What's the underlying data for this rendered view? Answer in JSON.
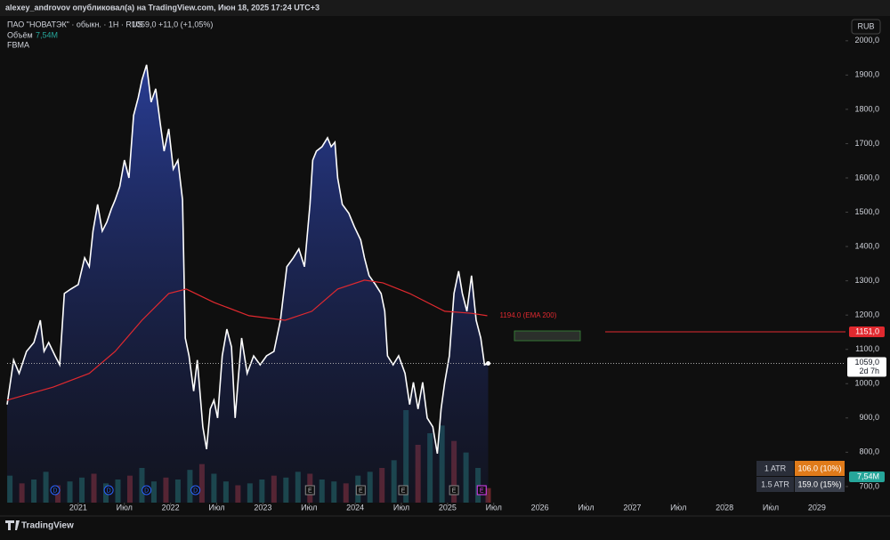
{
  "header": {
    "published": "alexey_androvov опубликовал(а) на TradingView.com, Июн 18, 2025 17:24 UTC+3",
    "symbol": "ПАО \"НОВАТЭК\" · обыкн. · 1Н · RUS",
    "last": "1059,0",
    "change": "+11,0 (+1,05%)",
    "volume_name": "Объём",
    "volume_value": "7,54M",
    "indicator": "FBMA",
    "currency": "RUB",
    "brand": "TradingView"
  },
  "chart_data": {
    "type": "line",
    "xlim": [
      2020.23,
      2029.31
    ],
    "ylim": [
      653,
      2067
    ],
    "xticks": [
      {
        "value": 2021,
        "label": "2021"
      },
      {
        "value": 2021.5,
        "label": "Июл"
      },
      {
        "value": 2022,
        "label": "2022"
      },
      {
        "value": 2022.5,
        "label": "Июл"
      },
      {
        "value": 2023,
        "label": "2023"
      },
      {
        "value": 2023.5,
        "label": "Июл"
      },
      {
        "value": 2024,
        "label": "2024"
      },
      {
        "value": 2024.5,
        "label": "Июл"
      },
      {
        "value": 2025,
        "label": "2025"
      },
      {
        "value": 2025.5,
        "label": "Июл"
      },
      {
        "value": 2026,
        "label": "2026"
      },
      {
        "value": 2026.5,
        "label": "Июл"
      },
      {
        "value": 2027,
        "label": "2027"
      },
      {
        "value": 2027.5,
        "label": "Июл"
      },
      {
        "value": 2028,
        "label": "2028"
      },
      {
        "value": 2028.5,
        "label": "Июл"
      },
      {
        "value": 2029,
        "label": "2029"
      }
    ],
    "yticks": [
      {
        "value": 700,
        "label": "700,0"
      },
      {
        "value": 800,
        "label": "800,0"
      },
      {
        "value": 900,
        "label": "900,0"
      },
      {
        "value": 1000,
        "label": "1000,0"
      },
      {
        "value": 1100,
        "label": "1100,0"
      },
      {
        "value": 1200,
        "label": "1200,0"
      },
      {
        "value": 1300,
        "label": "1300,0"
      },
      {
        "value": 1400,
        "label": "1400,0"
      },
      {
        "value": 1500,
        "label": "1500,0"
      },
      {
        "value": 1600,
        "label": "1600,0"
      },
      {
        "value": 1700,
        "label": "1700,0"
      },
      {
        "value": 1800,
        "label": "1800,0"
      },
      {
        "value": 1900,
        "label": "1900,0"
      },
      {
        "value": 2000,
        "label": "2000,0"
      }
    ],
    "series": [
      {
        "color": "#ffffff",
        "x": [
          2020.23,
          2020.3,
          2020.36,
          2020.44,
          2020.52,
          2020.59,
          2020.63,
          2020.68,
          2020.75,
          2020.8,
          2020.85,
          2020.92,
          2021.0,
          2021.07,
          2021.12,
          2021.16,
          2021.21,
          2021.26,
          2021.31,
          2021.36,
          2021.4,
          2021.45,
          2021.5,
          2021.55,
          2021.6,
          2021.65,
          2021.69,
          2021.74,
          2021.79,
          2021.84,
          2021.89,
          2021.93,
          2021.98,
          2022.03,
          2022.08,
          2022.13,
          2022.16,
          2022.2,
          2022.25,
          2022.29,
          2022.35,
          2022.39,
          2022.43,
          2022.47,
          2022.51,
          2022.56,
          2022.61,
          2022.66,
          2022.7,
          2022.73,
          2022.77,
          2022.83,
          2022.9,
          2022.97,
          2023.04,
          2023.12,
          2023.19,
          2023.26,
          2023.33,
          2023.39,
          2023.45,
          2023.51,
          2023.54,
          2023.58,
          2023.64,
          2023.7,
          2023.74,
          2023.78,
          2023.81,
          2023.86,
          2023.93,
          2023.99,
          2024.06,
          2024.1,
          2024.15,
          2024.22,
          2024.28,
          2024.32,
          2024.35,
          2024.41,
          2024.47,
          2024.54,
          2024.59,
          2024.63,
          2024.68,
          2024.73,
          2024.78,
          2024.84,
          2024.89,
          2024.93,
          2024.97,
          2025.02,
          2025.07,
          2025.12,
          2025.16,
          2025.21,
          2025.26,
          2025.31,
          2025.36,
          2025.4,
          2025.44
        ],
        "values": [
          939,
          1069,
          1030,
          1094,
          1120,
          1185,
          1094,
          1120,
          1081,
          1055,
          1263,
          1276,
          1289,
          1367,
          1341,
          1445,
          1523,
          1445,
          1471,
          1510,
          1536,
          1575,
          1652,
          1600,
          1782,
          1834,
          1886,
          1930,
          1821,
          1860,
          1756,
          1678,
          1743,
          1626,
          1652,
          1536,
          1133,
          1081,
          978,
          1069,
          874,
          809,
          926,
          952,
          900,
          1081,
          1159,
          1107,
          900,
          1004,
          1133,
          1030,
          1081,
          1055,
          1081,
          1094,
          1185,
          1341,
          1367,
          1393,
          1341,
          1523,
          1652,
          1678,
          1691,
          1717,
          1691,
          1704,
          1600,
          1523,
          1497,
          1458,
          1419,
          1367,
          1315,
          1289,
          1263,
          1211,
          1081,
          1055,
          1081,
          1030,
          939,
          1004,
          926,
          1004,
          900,
          874,
          796,
          926,
          1004,
          1081,
          1263,
          1328,
          1263,
          1211,
          1315,
          1185,
          1133,
          1055,
          1059
        ]
      },
      {
        "name": "EMA 200",
        "color": "#e0292f",
        "value_label": "1194.0 (EMA 200)",
        "x": [
          2020.23,
          2020.73,
          2021.12,
          2021.4,
          2021.69,
          2021.98,
          2022.17,
          2022.47,
          2022.85,
          2023.24,
          2023.53,
          2023.81,
          2024.1,
          2024.3,
          2024.59,
          2024.97,
          2025.26,
          2025.43
        ],
        "values": [
          952,
          990,
          1030,
          1094,
          1185,
          1263,
          1276,
          1237,
          1198,
          1185,
          1211,
          1276,
          1302,
          1294,
          1263,
          1211,
          1205,
          1198
        ]
      }
    ],
    "hline": {
      "value": 1151,
      "label": "1151,0",
      "color": "#e0292f"
    },
    "last_price": {
      "value": 1059,
      "label": "1059,0",
      "countdown": "2d 7h"
    },
    "volume": {
      "ylim": [
        0,
        60
      ],
      "last_label": "7,54M",
      "x": [
        2020.26,
        2020.39,
        2020.52,
        2020.65,
        2020.78,
        2020.91,
        2021.04,
        2021.17,
        2021.3,
        2021.43,
        2021.56,
        2021.69,
        2021.82,
        2021.95,
        2022.08,
        2022.21,
        2022.34,
        2022.47,
        2022.6,
        2022.73,
        2022.86,
        2022.99,
        2023.12,
        2023.25,
        2023.38,
        2023.51,
        2023.64,
        2023.77,
        2023.9,
        2024.03,
        2024.16,
        2024.29,
        2024.42,
        2024.55,
        2024.68,
        2024.81,
        2024.94,
        2025.07,
        2025.2,
        2025.33,
        2025.44
      ],
      "values": [
        14,
        10,
        12,
        16,
        9,
        11,
        13,
        15,
        10,
        12,
        14,
        18,
        11,
        13,
        12,
        17,
        20,
        15,
        11,
        9,
        10,
        12,
        14,
        13,
        16,
        15,
        12,
        11,
        10,
        14,
        16,
        18,
        22,
        48,
        30,
        36,
        40,
        32,
        26,
        18,
        7.54
      ]
    },
    "events": [
      {
        "x": 2020.75,
        "label": "D"
      },
      {
        "x": 2021.33,
        "label": "D"
      },
      {
        "x": 2021.74,
        "label": "D"
      },
      {
        "x": 2022.27,
        "label": "D"
      },
      {
        "x": 2023.51,
        "label": "E"
      },
      {
        "x": 2024.06,
        "label": "E"
      },
      {
        "x": 2024.52,
        "label": "E"
      },
      {
        "x": 2025.07,
        "label": "E"
      },
      {
        "x": 2025.37,
        "label": "E"
      }
    ],
    "atr_table": [
      [
        "1 ATR",
        "106.0 (10%)"
      ],
      [
        "1.5 ATR",
        "159.0 (15%)"
      ]
    ]
  }
}
